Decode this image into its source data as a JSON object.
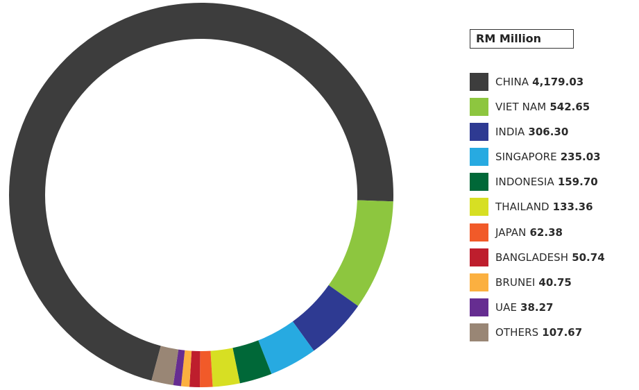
{
  "unit_label": "RM Million",
  "chart_data": {
    "type": "pie",
    "subtype": "donut",
    "title": "",
    "unit": "RM Million",
    "legend_position": "right",
    "start_angle_deg": 195,
    "direction": "clockwise",
    "slices": [
      {
        "name": "CHINA",
        "value": 4179.03,
        "label": "4,179.03",
        "color": "#3d3d3d"
      },
      {
        "name": "VIET NAM",
        "value": 542.65,
        "label": "542.65",
        "color": "#8dc63f"
      },
      {
        "name": "INDIA",
        "value": 306.3,
        "label": "306.30",
        "color": "#2e3a92"
      },
      {
        "name": "SINGAPORE",
        "value": 235.03,
        "label": "235.03",
        "color": "#27aae1"
      },
      {
        "name": "INDONESIA",
        "value": 159.7,
        "label": "159.70",
        "color": "#006838"
      },
      {
        "name": "THAILAND",
        "value": 133.36,
        "label": "133.36",
        "color": "#d7df23"
      },
      {
        "name": "JAPAN",
        "value": 62.38,
        "label": "62.38",
        "color": "#f15a29"
      },
      {
        "name": "BANGLADESH",
        "value": 50.74,
        "label": "50.74",
        "color": "#be1e2d"
      },
      {
        "name": "BRUNEI",
        "value": 40.75,
        "label": "40.75",
        "color": "#fbb040"
      },
      {
        "name": "UAE",
        "value": 38.27,
        "label": "38.27",
        "color": "#662d91"
      },
      {
        "name": "OTHERS",
        "value": 107.67,
        "label": "107.67",
        "color": "#998675"
      }
    ]
  }
}
